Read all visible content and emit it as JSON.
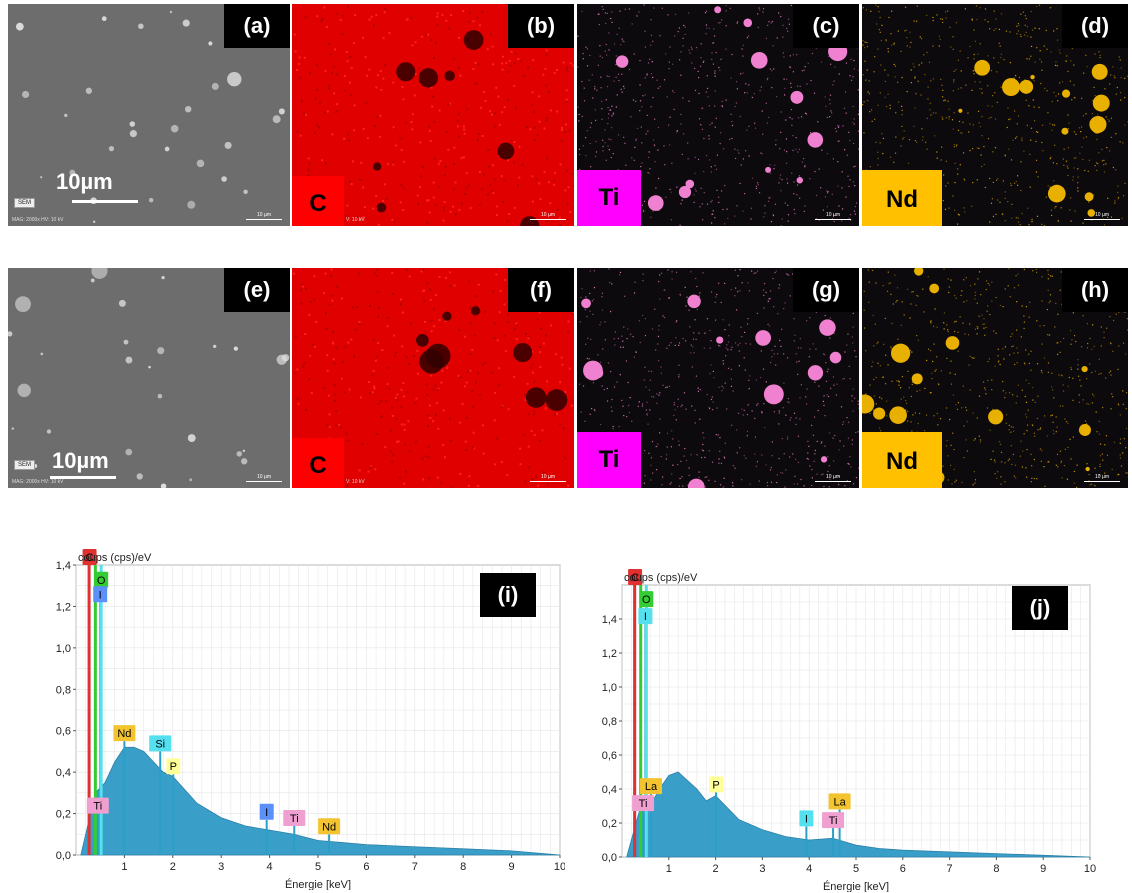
{
  "row1": {
    "panels": [
      {
        "label": "(a)",
        "kind": "sem",
        "scale_text": "10µm",
        "badge": "SEM",
        "meta": "MAG: 2000x  HV: 10 kV",
        "mini_scale": "10 µm"
      },
      {
        "label": "(b)",
        "kind": "C",
        "element": "C",
        "element_color": "#ff0000",
        "meta": "V: 10 kV",
        "mini_scale": "10 µm"
      },
      {
        "label": "(c)",
        "kind": "Ti",
        "element": "Ti",
        "element_color": "#ff00ff",
        "meta": "",
        "mini_scale": "10 µm"
      },
      {
        "label": "(d)",
        "kind": "Nd",
        "element": "Nd",
        "element_color": "#ffc000",
        "meta": "",
        "mini_scale": "10 µm"
      }
    ]
  },
  "row2": {
    "panels": [
      {
        "label": "(e)",
        "kind": "sem",
        "scale_text": "10µm",
        "badge": "SEM",
        "meta": "MAG: 2000x  HV: 10 kV",
        "mini_scale": "10 µm"
      },
      {
        "label": "(f)",
        "kind": "C",
        "element": "C",
        "element_color": "#ff0000",
        "meta": "V: 10 kV",
        "mini_scale": "10 µm"
      },
      {
        "label": "(g)",
        "kind": "Ti",
        "element": "Ti",
        "element_color": "#ff00ff",
        "meta": "",
        "mini_scale": "10 µm"
      },
      {
        "label": "(h)",
        "kind": "Nd",
        "element": "Nd",
        "element_color": "#ffc000",
        "meta": "",
        "mini_scale": "10 µm"
      }
    ]
  },
  "chart_data": [
    {
      "type": "area",
      "panel_label": "(i)",
      "ylabel": "coups (cps)/eV",
      "xlabel": "Énergie [keV]",
      "xlim": [
        0,
        10
      ],
      "ylim": [
        0,
        1.4
      ],
      "yticks": [
        "0,0",
        "0,2",
        "0,4",
        "0,6",
        "0,8",
        "1,0",
        "1,2",
        "1,4"
      ],
      "xticks": [
        "1",
        "2",
        "3",
        "4",
        "5",
        "6",
        "7",
        "8",
        "9",
        "10"
      ],
      "x": [
        0.1,
        0.2,
        0.3,
        0.4,
        0.6,
        0.8,
        1.0,
        1.2,
        1.4,
        1.6,
        1.8,
        2.0,
        2.5,
        3.0,
        3.5,
        4.0,
        4.5,
        5.0,
        5.5,
        6.0,
        7.0,
        8.0,
        9.0,
        10.0
      ],
      "y": [
        0.0,
        0.1,
        0.2,
        0.3,
        0.35,
        0.45,
        0.52,
        0.52,
        0.5,
        0.45,
        0.4,
        0.38,
        0.25,
        0.18,
        0.14,
        0.12,
        0.1,
        0.07,
        0.06,
        0.05,
        0.04,
        0.03,
        0.02,
        0.0
      ],
      "peaks": [
        {
          "label": "C",
          "x": 0.28,
          "y": 1.4,
          "color": "#e03030"
        },
        {
          "label": "O",
          "x": 0.52,
          "y": 1.29,
          "color": "#33cc33"
        },
        {
          "label": "I",
          "x": 0.5,
          "y": 1.22,
          "color": "#5b8ff9"
        },
        {
          "label": "Nd",
          "x": 1.0,
          "y": 0.55,
          "color": "#f4c430"
        },
        {
          "label": "Si",
          "x": 1.74,
          "y": 0.5,
          "color": "#55e0f0"
        },
        {
          "label": "P",
          "x": 2.01,
          "y": 0.39,
          "color": "#ffff99"
        },
        {
          "label": "Ti",
          "x": 0.45,
          "y": 0.2,
          "color": "#f0a0d0"
        },
        {
          "label": "I",
          "x": 3.94,
          "y": 0.17,
          "color": "#5b8ff9"
        },
        {
          "label": "Ti",
          "x": 4.51,
          "y": 0.14,
          "color": "#f0a0d0"
        },
        {
          "label": "Nd",
          "x": 5.23,
          "y": 0.1,
          "color": "#f4c430"
        }
      ]
    },
    {
      "type": "area",
      "panel_label": "(j)",
      "ylabel": "coups (cps)/eV",
      "xlabel": "Énergie [keV]",
      "xlim": [
        0,
        10
      ],
      "ylim": [
        0,
        1.6
      ],
      "yticks": [
        "0,0",
        "0,2",
        "0,4",
        "0,6",
        "0,8",
        "1,0",
        "1,2",
        "1,4"
      ],
      "xticks": [
        "1",
        "2",
        "3",
        "4",
        "5",
        "6",
        "7",
        "8",
        "9",
        "10"
      ],
      "x": [
        0.1,
        0.2,
        0.3,
        0.4,
        0.6,
        0.8,
        1.0,
        1.2,
        1.4,
        1.6,
        1.8,
        2.0,
        2.5,
        3.0,
        3.5,
        4.0,
        4.5,
        5.0,
        5.5,
        6.0,
        7.0,
        8.0,
        9.0,
        10.0
      ],
      "y": [
        0.0,
        0.1,
        0.2,
        0.3,
        0.3,
        0.4,
        0.48,
        0.5,
        0.45,
        0.4,
        0.33,
        0.36,
        0.22,
        0.16,
        0.12,
        0.1,
        0.11,
        0.07,
        0.05,
        0.04,
        0.03,
        0.02,
        0.01,
        0.0
      ],
      "peaks": [
        {
          "label": "C",
          "x": 0.28,
          "y": 1.6,
          "color": "#e03030"
        },
        {
          "label": "O",
          "x": 0.52,
          "y": 1.47,
          "color": "#33cc33"
        },
        {
          "label": "I",
          "x": 0.5,
          "y": 1.37,
          "color": "#55e0f0"
        },
        {
          "label": "La",
          "x": 0.62,
          "y": 0.37,
          "color": "#f4c430"
        },
        {
          "label": "Ti",
          "x": 0.45,
          "y": 0.27,
          "color": "#f0a0d0"
        },
        {
          "label": "P",
          "x": 2.01,
          "y": 0.38,
          "color": "#ffff99"
        },
        {
          "label": "I",
          "x": 3.94,
          "y": 0.18,
          "color": "#55e0f0"
        },
        {
          "label": "Ti",
          "x": 4.51,
          "y": 0.17,
          "color": "#f0a0d0"
        },
        {
          "label": "La",
          "x": 4.65,
          "y": 0.28,
          "color": "#f4c430"
        }
      ]
    }
  ]
}
